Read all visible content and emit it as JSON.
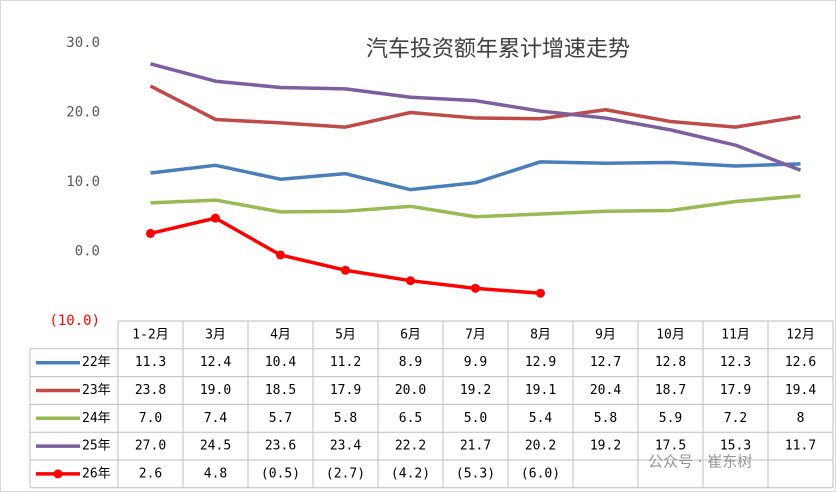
{
  "chart_data": {
    "type": "line",
    "title": "汽车投资额年累计增速走势",
    "categories": [
      "1-2月",
      "3月",
      "4月",
      "5月",
      "6月",
      "7月",
      "8月",
      "9月",
      "10月",
      "11月",
      "12月"
    ],
    "series": [
      {
        "name": "22年",
        "color": "#4a7ebb",
        "values": [
          11.3,
          12.4,
          10.4,
          11.2,
          8.9,
          9.9,
          12.9,
          12.7,
          12.8,
          12.3,
          12.6
        ],
        "value_labels": [
          "11.3",
          "12.4",
          "10.4",
          "11.2",
          "8.9",
          "9.9",
          "12.9",
          "12.7",
          "12.8",
          "12.3",
          "12.6"
        ]
      },
      {
        "name": "23年",
        "color": "#be4b48",
        "values": [
          23.8,
          19.0,
          18.5,
          17.9,
          20.0,
          19.2,
          19.1,
          20.4,
          18.7,
          17.9,
          19.4
        ],
        "value_labels": [
          "23.8",
          "19.0",
          "18.5",
          "17.9",
          "20.0",
          "19.2",
          "19.1",
          "20.4",
          "18.7",
          "17.9",
          "19.4"
        ]
      },
      {
        "name": "24年",
        "color": "#98b954",
        "values": [
          7.0,
          7.4,
          5.7,
          5.8,
          6.5,
          5.0,
          5.4,
          5.8,
          5.9,
          7.2,
          8
        ],
        "value_labels": [
          "7.0",
          "7.4",
          "5.7",
          "5.8",
          "6.5",
          "5.0",
          "5.4",
          "5.8",
          "5.9",
          "7.2",
          "8"
        ]
      },
      {
        "name": "25年",
        "color": "#7d5fa0",
        "values": [
          27.0,
          24.5,
          23.6,
          23.4,
          22.2,
          21.7,
          20.2,
          19.2,
          17.5,
          15.3,
          11.7
        ],
        "value_labels": [
          "27.0",
          "24.5",
          "23.6",
          "23.4",
          "22.2",
          "21.7",
          "20.2",
          "19.2",
          "17.5",
          "15.3",
          "11.7"
        ]
      },
      {
        "name": "26年",
        "color": "#ff0000",
        "markers": true,
        "values": [
          2.6,
          4.8,
          -0.5,
          -2.7,
          -4.2,
          -5.3,
          -6.0,
          null,
          null,
          null,
          null
        ],
        "value_labels": [
          "2.6",
          "4.8",
          "(0.5)",
          "(2.7)",
          "(4.2)",
          "(5.3)",
          "(6.0)",
          null,
          null,
          null,
          null
        ]
      }
    ],
    "ylim": [
      -10,
      30
    ],
    "yticks": [
      {
        "value": -10,
        "label": "(10.0)"
      },
      {
        "value": 0,
        "label": "0.0"
      },
      {
        "value": 10,
        "label": "10.0"
      },
      {
        "value": 20,
        "label": "20.0"
      },
      {
        "value": 30,
        "label": "30.0"
      }
    ],
    "negative_tick_color": "#ff0000",
    "data_table": true,
    "watermark": "公众号 · 崔东树"
  }
}
